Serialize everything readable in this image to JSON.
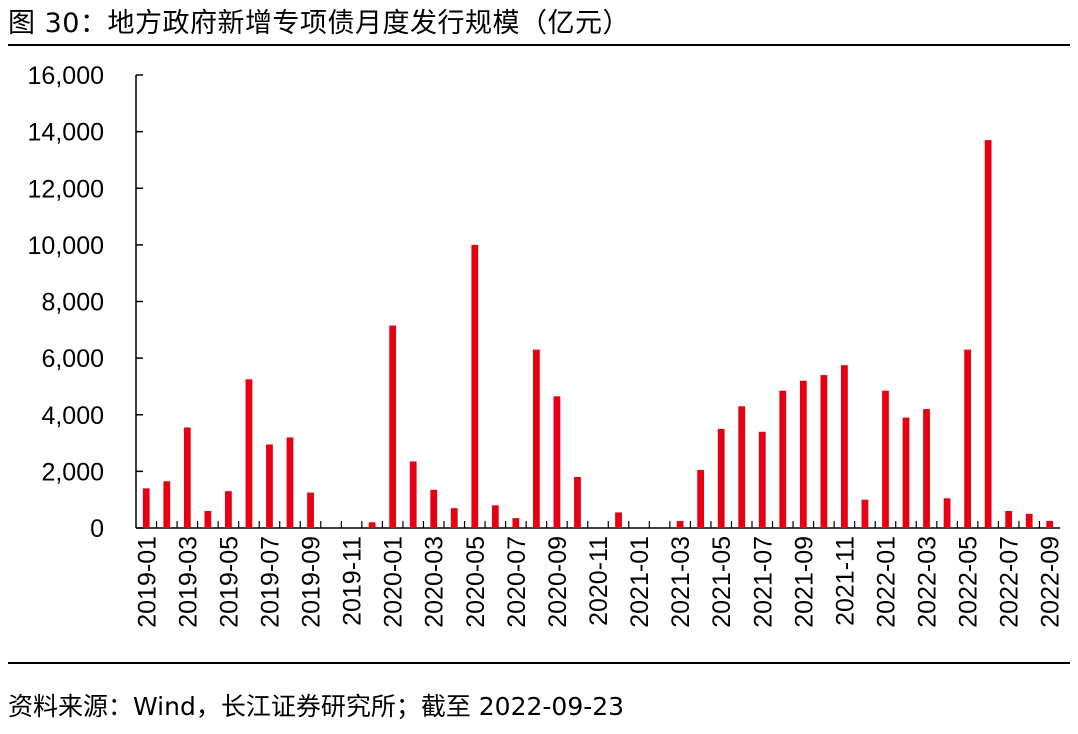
{
  "title": "图 30：地方政府新增专项债月度发行规模（亿元）",
  "source": "资料来源：Wind，长江证券研究所；截至 2022-09-23",
  "chart_data": {
    "type": "bar",
    "title": "图 30：地方政府新增专项债月度发行规模（亿元）",
    "xlabel": "",
    "ylabel": "",
    "ylim": [
      0,
      16000
    ],
    "yticks": [
      0,
      2000,
      4000,
      6000,
      8000,
      10000,
      12000,
      14000,
      16000
    ],
    "ytick_labels": [
      "0",
      "2,000",
      "4,000",
      "6,000",
      "8,000",
      "10,000",
      "12,000",
      "14,000",
      "16,000"
    ],
    "grid": false,
    "legend": "none",
    "bar_color": "#E60012",
    "categories": [
      "2019-01",
      "2019-02",
      "2019-03",
      "2019-04",
      "2019-05",
      "2019-06",
      "2019-07",
      "2019-08",
      "2019-09",
      "2019-10",
      "2019-11",
      "2019-12",
      "2020-01",
      "2020-02",
      "2020-03",
      "2020-04",
      "2020-05",
      "2020-06",
      "2020-07",
      "2020-08",
      "2020-09",
      "2020-10",
      "2020-11",
      "2020-12",
      "2021-01",
      "2021-02",
      "2021-03",
      "2021-04",
      "2021-05",
      "2021-06",
      "2021-07",
      "2021-08",
      "2021-09",
      "2021-10",
      "2021-11",
      "2021-12",
      "2022-01",
      "2022-02",
      "2022-03",
      "2022-04",
      "2022-05",
      "2022-06",
      "2022-07",
      "2022-08",
      "2022-09"
    ],
    "xtick_labels": [
      "2019-01",
      "2019-03",
      "2019-05",
      "2019-07",
      "2019-09",
      "2019-11",
      "2020-01",
      "2020-03",
      "2020-05",
      "2020-07",
      "2020-09",
      "2020-11",
      "2021-01",
      "2021-03",
      "2021-05",
      "2021-07",
      "2021-09",
      "2021-11",
      "2022-01",
      "2022-03",
      "2022-05",
      "2022-07",
      "2022-09"
    ],
    "values": [
      1400,
      1650,
      3550,
      600,
      1300,
      5250,
      2950,
      3200,
      1250,
      0,
      0,
      200,
      7150,
      2350,
      1350,
      700,
      10000,
      800,
      350,
      6300,
      4650,
      1800,
      0,
      550,
      0,
      0,
      250,
      2050,
      3500,
      4300,
      3400,
      4850,
      5200,
      5400,
      5750,
      1000,
      4850,
      3900,
      4200,
      1050,
      6300,
      13700,
      600,
      500,
      250
    ]
  }
}
